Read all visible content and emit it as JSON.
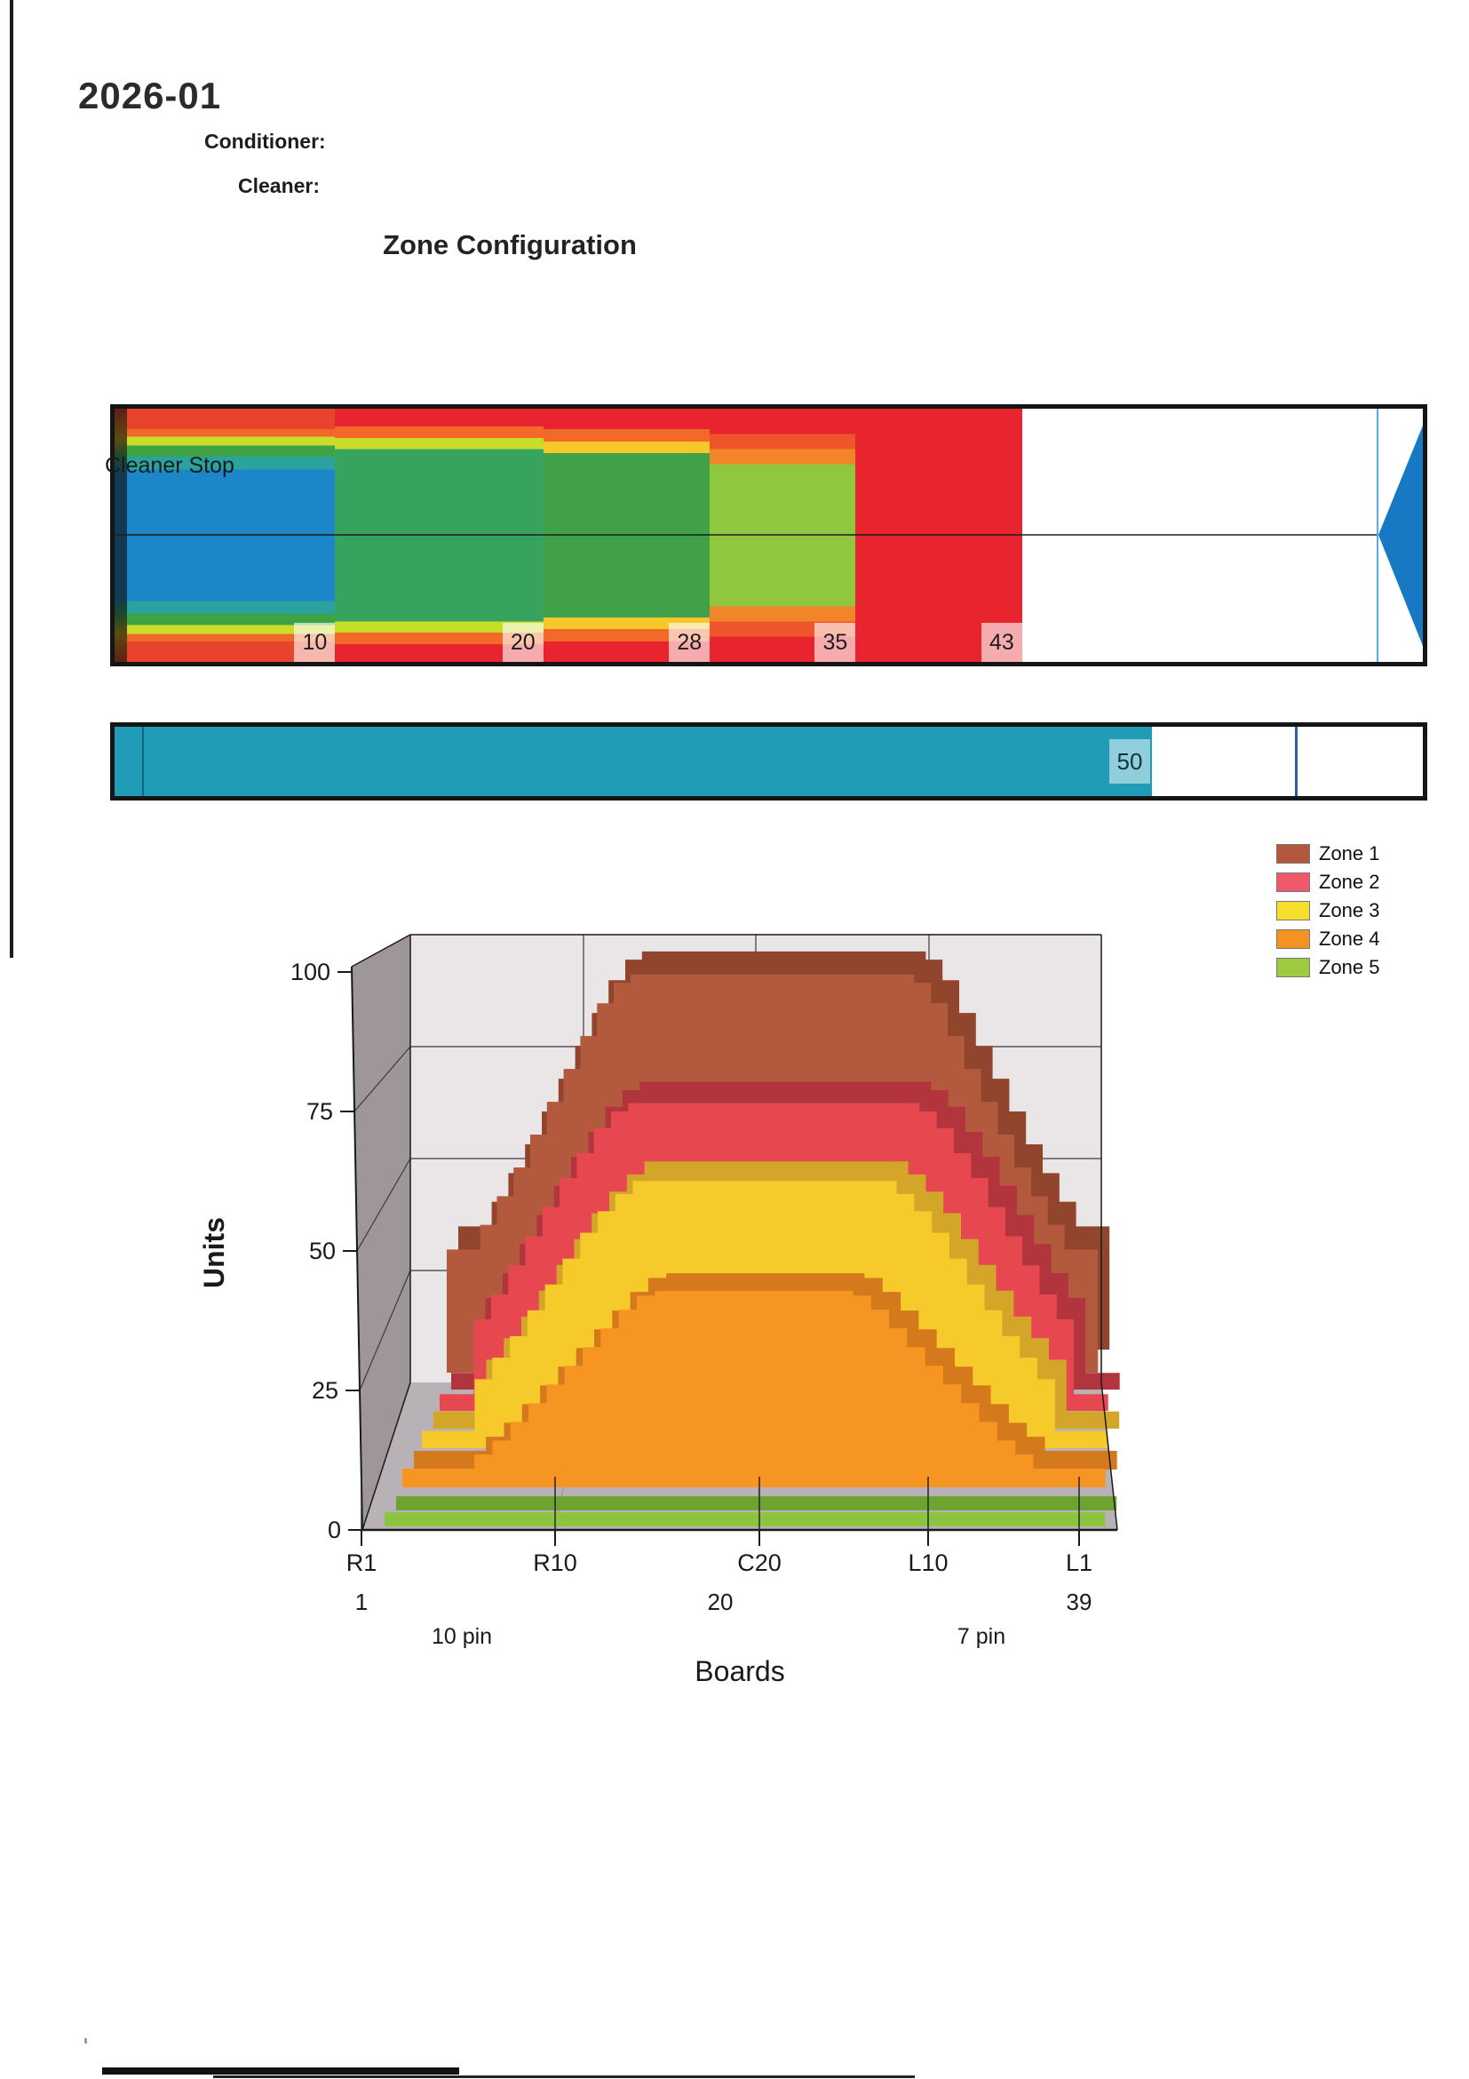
{
  "page": {
    "doc_title": "2026-01",
    "conditioner_label": "Conditioner:",
    "cleaner_label": "Cleaner:"
  },
  "zone_config": {
    "title": "Zone Configuration",
    "arrow_color": "#1779c4",
    "marker_line_color": "#5fa8dc",
    "boundaries": [
      {
        "label": "10",
        "board": 10
      },
      {
        "label": "20",
        "board": 20
      },
      {
        "label": "28",
        "board": 28
      },
      {
        "label": "35",
        "board": 35
      },
      {
        "label": "43",
        "board": 43
      }
    ],
    "segments": [
      {
        "end_board": 10,
        "stops": [
          [
            "#e8432c",
            0,
            8
          ],
          [
            "#ef6a28",
            8,
            11
          ],
          [
            "#c9dd2a",
            11,
            14.5
          ],
          [
            "#3fa244",
            14.5,
            19
          ],
          [
            "#2aa39e",
            19,
            24
          ],
          [
            "#1b87c9",
            24,
            76
          ],
          [
            "#2aa39e",
            76,
            81
          ],
          [
            "#3fa244",
            81,
            85.5
          ],
          [
            "#c9dd2a",
            85.5,
            89
          ],
          [
            "#ef6a28",
            89,
            92
          ],
          [
            "#e8432c",
            92,
            100
          ]
        ]
      },
      {
        "end_board": 20,
        "stops": [
          [
            "#e8252e",
            0,
            7
          ],
          [
            "#f2692a",
            7,
            11.5
          ],
          [
            "#c8dc28",
            11.5,
            16
          ],
          [
            "#38a35e",
            16,
            84
          ],
          [
            "#c8dc28",
            84,
            88.5
          ],
          [
            "#f2692a",
            88.5,
            93
          ],
          [
            "#e8252e",
            93,
            100
          ]
        ]
      },
      {
        "end_board": 28,
        "stops": [
          [
            "#e8252e",
            0,
            8
          ],
          [
            "#f2692a",
            8,
            13
          ],
          [
            "#f5c728",
            13,
            17.5
          ],
          [
            "#41a148",
            17.5,
            82.5
          ],
          [
            "#f5c728",
            82.5,
            87
          ],
          [
            "#f2692a",
            87,
            92
          ],
          [
            "#e8252e",
            92,
            100
          ]
        ]
      },
      {
        "end_board": 35,
        "stops": [
          [
            "#e8252e",
            0,
            10
          ],
          [
            "#ee552b",
            10,
            16
          ],
          [
            "#f2852a",
            16,
            22
          ],
          [
            "#8fc73e",
            22,
            78
          ],
          [
            "#f2852a",
            78,
            84
          ],
          [
            "#ee552b",
            84,
            90
          ],
          [
            "#e8252e",
            90,
            100
          ]
        ]
      },
      {
        "end_board": 43,
        "stops": [
          [
            "#e8252e",
            0,
            100
          ]
        ]
      }
    ]
  },
  "cleaner_stop": {
    "label": "Cleaner Stop",
    "value_label": "50",
    "value_board": 50,
    "bar_color": "#219cb8",
    "marker_color": "#2b5fa5"
  },
  "chart_data": {
    "type": "3d-ribbon",
    "title": "",
    "xlabel": "Boards",
    "ylabel": "Units",
    "ylim": [
      0,
      100
    ],
    "yticks": [
      "0",
      "25",
      "50",
      "75",
      "100"
    ],
    "ytick_values": [
      0,
      25,
      50,
      75,
      100
    ],
    "xticks": [
      "R1",
      "R10",
      "C20",
      "L10",
      "L1"
    ],
    "xtick_boards": [
      1,
      10,
      20,
      30,
      39
    ],
    "xticks_row2": [
      {
        "label": "1",
        "board": 1
      },
      {
        "label": "20",
        "board": 20
      },
      {
        "label": "39",
        "board": 39
      }
    ],
    "pin_labels": [
      {
        "label": "10 pin",
        "side": "left"
      },
      {
        "label": "7 pin",
        "side": "right"
      }
    ],
    "legend_position": "top-right",
    "boards": 39,
    "legend": [
      {
        "label": "Zone 1",
        "color": "#b3583f"
      },
      {
        "label": "Zone 2",
        "color": "#ee5a6a"
      },
      {
        "label": "Zone 3",
        "color": "#f5de2e"
      },
      {
        "label": "Zone 4",
        "color": "#f49222"
      },
      {
        "label": "Zone 5",
        "color": "#9fc940"
      }
    ],
    "series": [
      {
        "name": "Zone 1",
        "color": "#b2593e",
        "top_color": "#91452d",
        "values": [
          30,
          30,
          36,
          43,
          50,
          58,
          66,
          74,
          82,
          90,
          95,
          97,
          97,
          97,
          97,
          97,
          97,
          97,
          97,
          97,
          97,
          97,
          97,
          97,
          97,
          97,
          97,
          97,
          95,
          90,
          82,
          74,
          66,
          58,
          50,
          43,
          36,
          30,
          30
        ]
      },
      {
        "name": "Zone 2",
        "color": "#e74850",
        "top_color": "#b2343d",
        "values": [
          4,
          4,
          22,
          28,
          35,
          42,
          49,
          56,
          62,
          68,
          72,
          74,
          74,
          74,
          74,
          74,
          74,
          74,
          74,
          74,
          74,
          74,
          74,
          74,
          74,
          74,
          74,
          74,
          72,
          68,
          62,
          56,
          49,
          42,
          35,
          28,
          22,
          4,
          4
        ]
      },
      {
        "name": "Zone 3",
        "color": "#f6ca2a",
        "top_color": "#d3a529",
        "values": [
          4,
          4,
          4,
          16,
          21,
          26,
          32,
          38,
          44,
          50,
          55,
          59,
          62,
          62,
          62,
          62,
          62,
          62,
          62,
          62,
          62,
          62,
          62,
          62,
          62,
          62,
          62,
          59,
          55,
          50,
          44,
          38,
          32,
          26,
          21,
          16,
          4,
          4,
          4
        ]
      },
      {
        "name": "Zone 4",
        "color": "#f79522",
        "top_color": "#d47a1c",
        "values": [
          4,
          4,
          4,
          4,
          7,
          10,
          14,
          18,
          22,
          26,
          30,
          34,
          38,
          41,
          42,
          42,
          42,
          42,
          42,
          42,
          42,
          42,
          42,
          42,
          42,
          41,
          38,
          34,
          30,
          26,
          22,
          18,
          14,
          10,
          7,
          4,
          4,
          4,
          4
        ]
      },
      {
        "name": "Zone 5",
        "color": "#8bc43f",
        "top_color": "#6fa331",
        "values": [
          3,
          3,
          3,
          3,
          3,
          3,
          3,
          3,
          3,
          3,
          3,
          3,
          3,
          3,
          3,
          3,
          3,
          3,
          3,
          3,
          3,
          3,
          3,
          3,
          3,
          3,
          3,
          3,
          3,
          3,
          3,
          3,
          3,
          3,
          3,
          3,
          3,
          3,
          3
        ]
      }
    ],
    "walls": {
      "back_color": "#eae6e8",
      "left_color": "#9e969b",
      "floor_color": "#b8b1b5",
      "grid_color": "#3a3a3a"
    }
  }
}
